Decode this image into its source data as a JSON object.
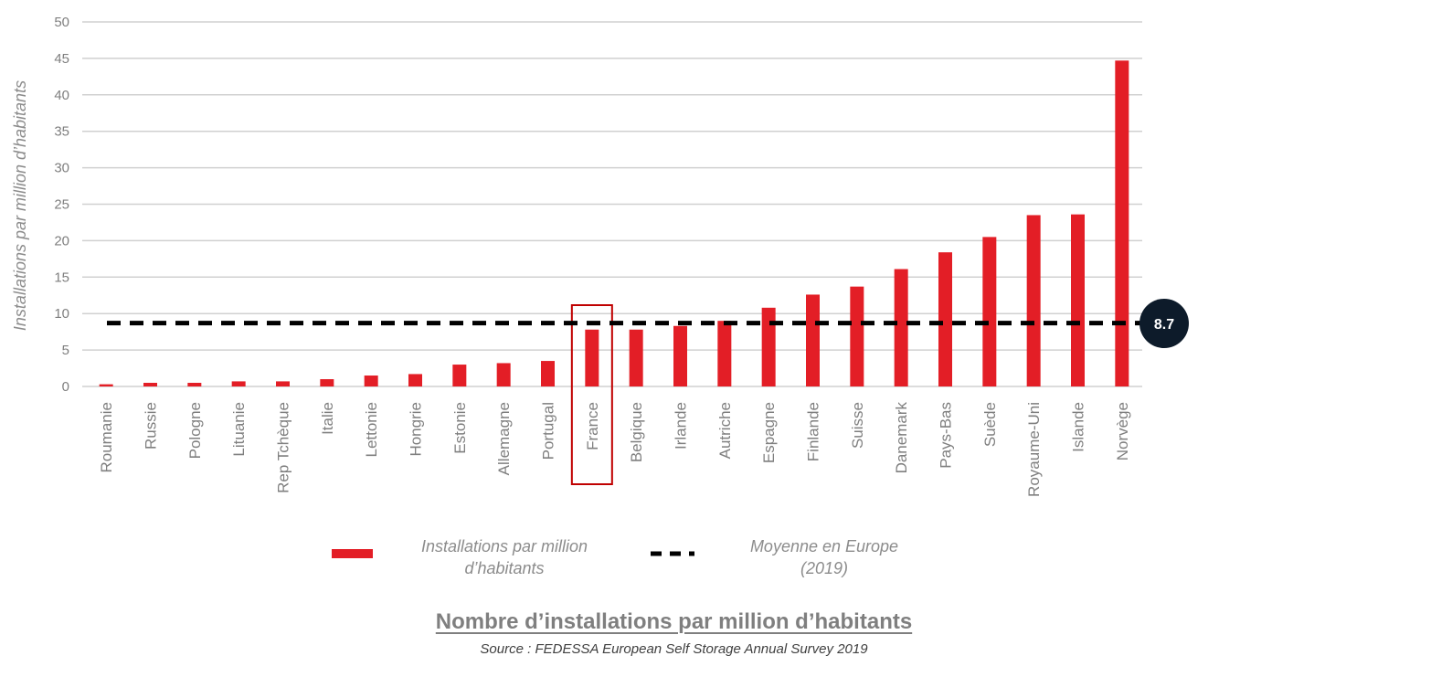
{
  "chart_data": {
    "type": "bar",
    "categories": [
      "Roumanie",
      "Russie",
      "Pologne",
      "Lituanie",
      "Rep Tchèque",
      "Italie",
      "Lettonie",
      "Hongrie",
      "Estonie",
      "Allemagne",
      "Portugal",
      "France",
      "Belgique",
      "Irlande",
      "Autriche",
      "Espagne",
      "Finlande",
      "Suisse",
      "Danemark",
      "Pays-Bas",
      "Suède",
      "Royaume-Uni",
      "Islande",
      "Norvège"
    ],
    "series": [
      {
        "name": "Installations par million d’habitants",
        "values": [
          0.3,
          0.5,
          0.5,
          0.7,
          0.7,
          1.0,
          1.5,
          1.7,
          3.0,
          3.2,
          3.5,
          7.8,
          7.8,
          8.3,
          9.0,
          10.8,
          12.6,
          13.7,
          16.1,
          18.4,
          20.5,
          23.5,
          23.6,
          44.7
        ],
        "color": "#e31e26"
      }
    ],
    "reference_line": {
      "name": "Moyenne en Europe (2019)",
      "value": 8.7,
      "label": "8.7",
      "color": "#000000"
    },
    "highlighted_category": "France",
    "highlight_color": "#c00000",
    "ylabel": "Installations par million d’habitants",
    "xlabel": "",
    "ylim": [
      0,
      50
    ],
    "yticks": [
      0,
      5,
      10,
      15,
      20,
      25,
      30,
      35,
      40,
      45,
      50
    ],
    "grid": "horizontal",
    "legend": {
      "placement": "bottom-center",
      "bar_label_lines": [
        "Installations par million",
        "d’habitants"
      ],
      "line_label_lines": [
        "Moyenne en Europe",
        "(2019)"
      ]
    },
    "title": "Nombre d’installations par million d’habitants",
    "source": "Source : FEDESSA European Self Storage Annual Survey 2019"
  }
}
